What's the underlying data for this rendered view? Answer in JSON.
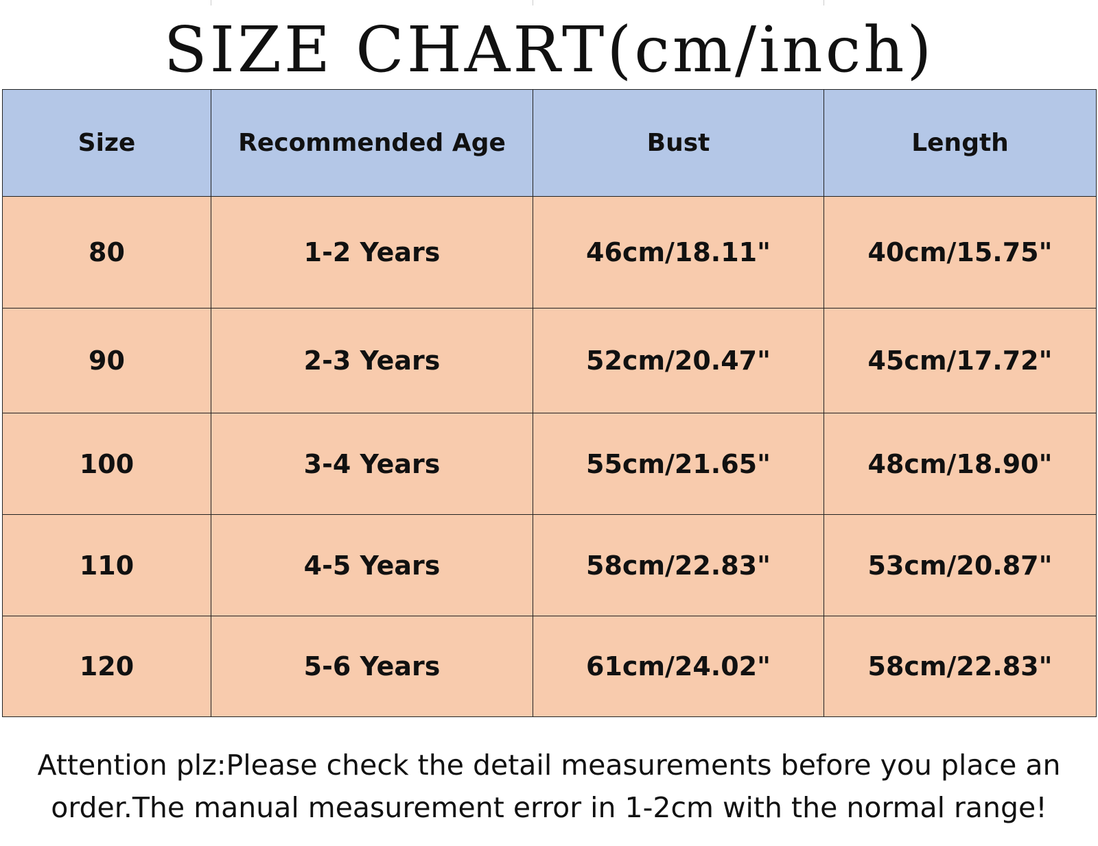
{
  "title": "SIZE CHART(cm/inch)",
  "table": {
    "header": [
      "Size",
      "Recommended Age",
      "Bust",
      "Length"
    ],
    "rows": [
      [
        "80",
        "1-2 Years",
        "46cm/18.11\"",
        "40cm/15.75\""
      ],
      [
        "90",
        "2-3 Years",
        "52cm/20.47\"",
        "45cm/17.72\""
      ],
      [
        "100",
        "3-4 Years",
        "55cm/21.65\"",
        "48cm/18.90\""
      ],
      [
        "110",
        "4-5 Years",
        "58cm/22.83\"",
        "53cm/20.87\""
      ],
      [
        "120",
        "5-6 Years",
        "61cm/24.02\"",
        "58cm/22.83\""
      ]
    ]
  },
  "note": "Attention plz:Please check the detail measurements before you place an order.The manual measurement error in 1-2cm with the normal range!"
}
